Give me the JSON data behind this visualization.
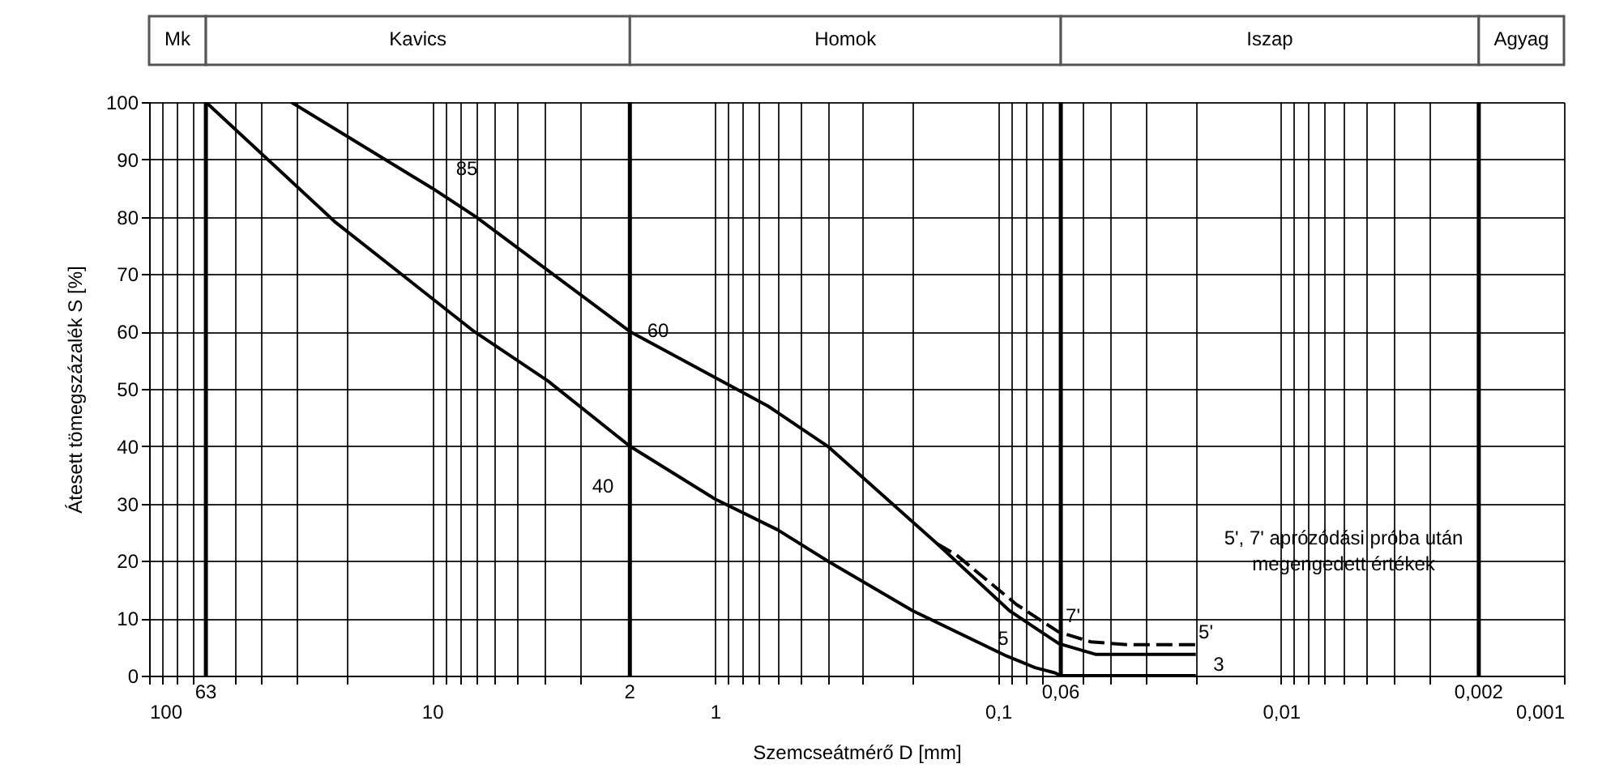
{
  "chart_data": {
    "type": "line",
    "xlabel": "Szemcseátmérő  D [mm]",
    "ylabel": "Átesett tömegszázalék S [%]",
    "log": "x",
    "xlim": [
      100,
      0.001
    ],
    "ylim": [
      0,
      100
    ],
    "xticks": [
      100,
      {
        "value": 90,
        "label": null
      },
      {
        "value": 80,
        "label": null
      },
      {
        "value": 70,
        "label": null
      },
      {
        "value": 50,
        "label": null
      },
      {
        "value": 40,
        "label": null
      },
      {
        "value": 30,
        "label": null
      },
      {
        "value": 20,
        "label": null
      },
      10,
      {
        "value": 9,
        "label": null
      },
      {
        "value": 8,
        "label": null
      },
      {
        "value": 7,
        "label": null
      },
      {
        "value": 6,
        "label": null
      },
      {
        "value": 5,
        "label": null
      },
      {
        "value": 4,
        "label": null
      },
      {
        "value": 3,
        "label": null
      },
      1,
      {
        "value": 0.9,
        "label": null
      },
      {
        "value": 0.8,
        "label": null
      },
      {
        "value": 0.7,
        "label": null
      },
      {
        "value": 0.6,
        "label": null
      },
      {
        "value": 0.5,
        "label": null
      },
      {
        "value": 0.4,
        "label": null
      },
      {
        "value": 0.3,
        "label": null
      },
      {
        "value": 0.2,
        "label": null
      },
      {
        "value": 0.1,
        "label": "0,1"
      },
      {
        "value": 0.09,
        "label": null
      },
      {
        "value": 0.08,
        "label": null
      },
      {
        "value": 0.07,
        "label": null
      },
      {
        "value": 0.05,
        "label": null
      },
      {
        "value": 0.04,
        "label": null
      },
      {
        "value": 0.03,
        "label": null
      },
      {
        "value": 0.02,
        "label": null
      },
      {
        "value": 0.01,
        "label": "0,01"
      },
      {
        "value": 0.009,
        "label": null
      },
      {
        "value": 0.008,
        "label": null
      },
      {
        "value": 0.007,
        "label": null
      },
      {
        "value": 0.006,
        "label": null
      },
      {
        "value": 0.005,
        "label": null
      },
      {
        "value": 0.004,
        "label": null
      },
      {
        "value": 0.003,
        "label": null
      },
      {
        "value": 0.001,
        "label": "0,001"
      }
    ],
    "yticks": [
      0,
      10,
      20,
      30,
      40,
      50,
      60,
      70,
      80,
      90,
      100
    ],
    "grid": true,
    "series": [
      {
        "color": "#000000",
        "line_style": "solid",
        "x": [
          31.5,
          10,
          7,
          2,
          0.65,
          0.4,
          0.164,
          0.091,
          0.061,
          0.045,
          0.02
        ],
        "values": [
          100,
          85,
          80,
          60,
          47,
          40,
          23,
          11.3,
          5.6,
          3.7,
          3.7
        ]
      },
      {
        "color": "#000000",
        "line_style": "dashed",
        "x": [
          0.164,
          0.14,
          0.086,
          0.061,
          0.047,
          0.035,
          0.02
        ],
        "values": [
          23,
          21,
          12.4,
          7.6,
          5.9,
          5.4,
          5.4
        ]
      },
      {
        "color": "#000000",
        "line_style": "solid",
        "x": [
          63,
          21.9,
          7.1,
          3.9,
          2,
          1,
          0.6,
          0.4,
          0.2,
          0.093,
          0.074,
          0.063,
          0.06,
          0.02
        ],
        "values": [
          100,
          79,
          60,
          51.4,
          40,
          30.8,
          25.4,
          20,
          11.3,
          3.4,
          1.4,
          0.5,
          0,
          0
        ]
      }
    ],
    "ref_lines": [
      {
        "axis": "x",
        "value": 63,
        "label": "63",
        "color": "#000000"
      },
      {
        "axis": "x",
        "value": 2,
        "label": "2",
        "color": "#000000"
      },
      {
        "axis": "x",
        "value": 0.06,
        "label": "0,06",
        "color": "#000000"
      },
      {
        "axis": "x",
        "value": 0.002,
        "label": "0,002",
        "color": "#000000"
      }
    ],
    "annotations": [
      "Mk",
      "Kavics",
      "Homok",
      "Iszap",
      "Agyag",
      "85",
      "60",
      "40",
      "7'",
      "5'",
      "3",
      "5",
      "5', 7' aprózódási próba után\nmegengedett értékek"
    ]
  }
}
